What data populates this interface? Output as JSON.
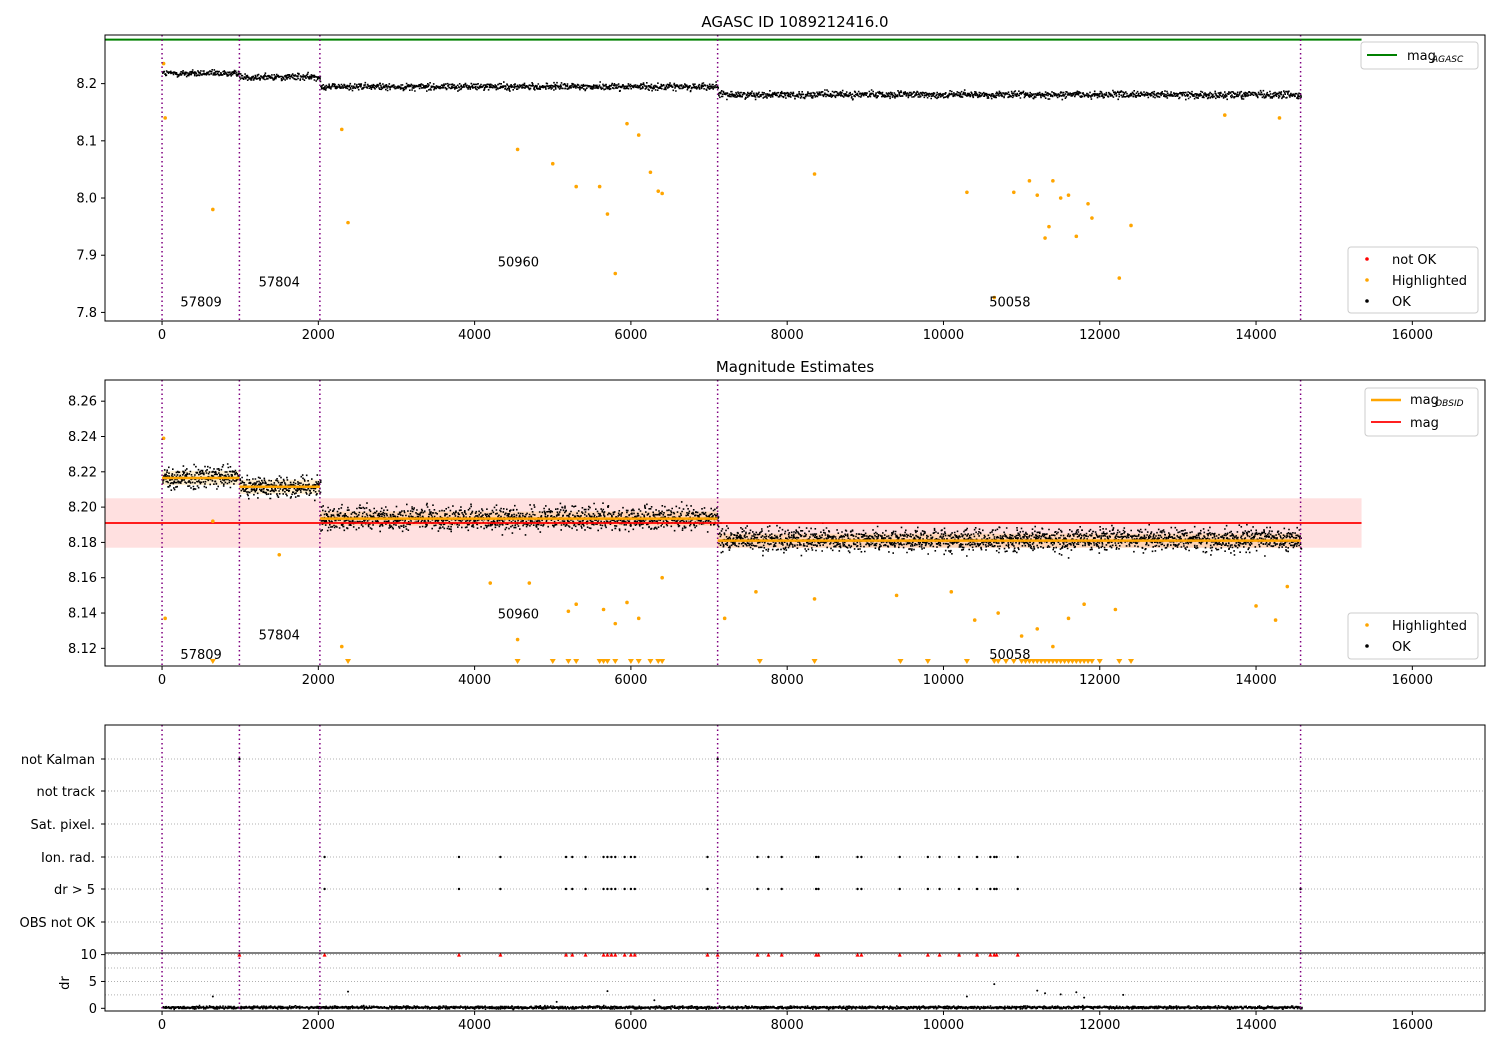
{
  "figure": {
    "title": "AGASC ID 1089212416.0"
  },
  "chart_data": [
    {
      "type": "scatter",
      "title": "",
      "xlabel": "",
      "ylabel": "",
      "xlim": [
        -730,
        16930
      ],
      "ylim": [
        7.785,
        8.285
      ],
      "xticks": [
        0,
        2000,
        4000,
        6000,
        8000,
        10000,
        12000,
        14000,
        16000
      ],
      "yticks": [
        7.8,
        7.9,
        8.0,
        8.1,
        8.2
      ],
      "ytick_labels": [
        "7.8",
        "7.9",
        "8.0",
        "8.1",
        "8.2"
      ],
      "obs_boundaries": [
        0,
        990,
        2020,
        7110,
        14570
      ],
      "obsid_labels": [
        {
          "text": "57809",
          "x": 500,
          "y": 7.81
        },
        {
          "text": "57804",
          "x": 1500,
          "y": 7.845
        },
        {
          "text": "50960",
          "x": 4560,
          "y": 7.88
        },
        {
          "text": "50058",
          "x": 10850,
          "y": 7.81
        }
      ],
      "reference_line": {
        "name": "mag_AGASC",
        "y": 8.277,
        "xrange": [
          -730,
          15350
        ],
        "color": "#008000"
      },
      "segments": [
        {
          "x0": 0,
          "x1": 990,
          "mean": 8.219,
          "spread": 0.006
        },
        {
          "x0": 990,
          "x1": 2020,
          "mean": 8.213,
          "spread": 0.006
        },
        {
          "x0": 2020,
          "x1": 7110,
          "mean": 8.196,
          "spread": 0.006
        },
        {
          "x0": 7110,
          "x1": 14570,
          "mean": 8.182,
          "spread": 0.006
        }
      ],
      "series": [
        {
          "name": "not OK",
          "color": "#ff0000",
          "values": []
        },
        {
          "name": "Highlighted",
          "color": "#ffa500",
          "points": [
            [
              20,
              8.235
            ],
            [
              40,
              8.14
            ],
            [
              650,
              7.98
            ],
            [
              2300,
              8.12
            ],
            [
              2380,
              7.957
            ],
            [
              4550,
              8.085
            ],
            [
              5000,
              8.06
            ],
            [
              5300,
              8.02
            ],
            [
              5600,
              8.02
            ],
            [
              5700,
              7.972
            ],
            [
              5800,
              7.868
            ],
            [
              5950,
              8.13
            ],
            [
              6100,
              8.11
            ],
            [
              6250,
              8.045
            ],
            [
              6350,
              8.012
            ],
            [
              6400,
              8.008
            ],
            [
              8350,
              8.042
            ],
            [
              10300,
              8.01
            ],
            [
              10650,
              7.826
            ],
            [
              10900,
              8.01
            ],
            [
              11100,
              8.03
            ],
            [
              11200,
              8.005
            ],
            [
              11300,
              7.93
            ],
            [
              11350,
              7.95
            ],
            [
              11400,
              8.03
            ],
            [
              11500,
              8.0
            ],
            [
              11600,
              8.005
            ],
            [
              11700,
              7.933
            ],
            [
              11850,
              7.99
            ],
            [
              11900,
              7.965
            ],
            [
              12250,
              7.86
            ],
            [
              12400,
              7.952
            ],
            [
              14300,
              8.14
            ],
            [
              13600,
              8.145
            ]
          ]
        },
        {
          "name": "OK",
          "color": "#000000",
          "values": []
        }
      ],
      "legend": {
        "location": "lower right",
        "entries": [
          "not OK",
          "Highlighted",
          "OK"
        ]
      },
      "legend_top": {
        "location": "upper right",
        "entries": [
          "mag_AGASC"
        ]
      }
    },
    {
      "type": "scatter",
      "title": "Magnitude Estimates",
      "xlabel": "",
      "ylabel": "",
      "xlim": [
        -730,
        16930
      ],
      "ylim": [
        8.11,
        8.272
      ],
      "xticks": [
        0,
        2000,
        4000,
        6000,
        8000,
        10000,
        12000,
        14000,
        16000
      ],
      "yticks": [
        8.12,
        8.14,
        8.16,
        8.18,
        8.2,
        8.22,
        8.24,
        8.26
      ],
      "ytick_labels": [
        "8.12",
        "8.14",
        "8.16",
        "8.18",
        "8.20",
        "8.22",
        "8.24",
        "8.26"
      ],
      "obs_boundaries": [
        0,
        990,
        2020,
        7110,
        14570
      ],
      "obsid_labels": [
        {
          "text": "57809",
          "x": 500,
          "y": 8.114
        },
        {
          "text": "57804",
          "x": 1500,
          "y": 8.125
        },
        {
          "text": "50960",
          "x": 4560,
          "y": 8.137
        },
        {
          "text": "50058",
          "x": 10850,
          "y": 8.114
        }
      ],
      "mag_mean": 8.191,
      "mag_band": [
        8.177,
        8.205
      ],
      "mag_line_xrange": [
        -730,
        15350
      ],
      "obsid_means": [
        {
          "x0": 0,
          "x1": 990,
          "y": 8.2165
        },
        {
          "x0": 990,
          "x1": 2020,
          "y": 8.2115
        },
        {
          "x0": 2020,
          "x1": 7110,
          "y": 8.1935
        },
        {
          "x0": 7110,
          "x1": 14570,
          "y": 8.181
        }
      ],
      "segments": [
        {
          "x0": 0,
          "x1": 990,
          "mean": 8.217,
          "spread": 0.006
        },
        {
          "x0": 990,
          "x1": 2020,
          "mean": 8.212,
          "spread": 0.006
        },
        {
          "x0": 2020,
          "x1": 7110,
          "mean": 8.194,
          "spread": 0.0065
        },
        {
          "x0": 7110,
          "x1": 14570,
          "mean": 8.182,
          "spread": 0.0065
        }
      ],
      "series": [
        {
          "name": "Highlighted",
          "color": "#ffa500",
          "points": [
            [
              20,
              8.239
            ],
            [
              40,
              8.137
            ],
            [
              650,
              8.192
            ],
            [
              1500,
              8.173
            ],
            [
              2300,
              8.121
            ],
            [
              4200,
              8.157
            ],
            [
              4550,
              8.125
            ],
            [
              4700,
              8.157
            ],
            [
              5200,
              8.141
            ],
            [
              5300,
              8.145
            ],
            [
              5650,
              8.142
            ],
            [
              5800,
              8.134
            ],
            [
              5950,
              8.146
            ],
            [
              6100,
              8.137
            ],
            [
              6400,
              8.16
            ],
            [
              7200,
              8.137
            ],
            [
              7600,
              8.152
            ],
            [
              8350,
              8.148
            ],
            [
              9400,
              8.15
            ],
            [
              10100,
              8.152
            ],
            [
              10400,
              8.136
            ],
            [
              10700,
              8.14
            ],
            [
              11000,
              8.127
            ],
            [
              11200,
              8.131
            ],
            [
              11400,
              8.121
            ],
            [
              11600,
              8.137
            ],
            [
              11800,
              8.145
            ],
            [
              12200,
              8.142
            ],
            [
              14250,
              8.136
            ],
            [
              14000,
              8.144
            ],
            [
              14400,
              8.155
            ]
          ]
        },
        {
          "name": "Highlighted (clipped)",
          "color": "#ffa500",
          "xs": [
            650,
            2380,
            4550,
            5000,
            5200,
            5300,
            5600,
            5650,
            5700,
            5800,
            6000,
            6100,
            6250,
            6350,
            6400,
            7650,
            8350,
            9450,
            9800,
            10300,
            10650,
            10700,
            10800,
            10900,
            11000,
            11050,
            11100,
            11150,
            11200,
            11250,
            11300,
            11350,
            11400,
            11450,
            11500,
            11550,
            11600,
            11650,
            11700,
            11750,
            11800,
            11850,
            11900,
            12000,
            12250,
            12400
          ]
        },
        {
          "name": "OK",
          "color": "#000000",
          "values": []
        }
      ],
      "legend": {
        "location": "lower right",
        "entries": [
          "Highlighted",
          "OK"
        ]
      },
      "legend_top": {
        "location": "upper right",
        "entries": [
          "mag_OBSID",
          "mag"
        ]
      }
    },
    {
      "type": "scatter",
      "title": "",
      "xlabel": "",
      "ylabel": "",
      "xlim": [
        -730,
        16930
      ],
      "flag_rows": [
        "not Kalman",
        "not track",
        "Sat. pixel.",
        "Ion. rad.",
        "dr > 5",
        "OBS not OK"
      ],
      "obs_boundaries": [
        0,
        990,
        2020,
        7110,
        14570
      ],
      "flag_points": {
        "Ion. rad.": [
          2080,
          3800,
          4330,
          5170,
          5250,
          5420,
          5650,
          5700,
          5750,
          5800,
          5920,
          6000,
          6050,
          6980,
          7620,
          7760,
          7930,
          8370,
          8400,
          8900,
          8950,
          9440,
          9800,
          9950,
          10200,
          10430,
          10600,
          10650,
          10680,
          10950
        ],
        "dr > 5": [
          2080,
          3800,
          4330,
          5170,
          5250,
          5420,
          5650,
          5700,
          5750,
          5800,
          5920,
          6000,
          6050,
          6980,
          7620,
          7760,
          7930,
          8370,
          8400,
          8900,
          8950,
          9440,
          9800,
          9950,
          10200,
          10430,
          10600,
          10650,
          10680,
          10950,
          14570
        ],
        "not Kalman": [
          990,
          7110
        ]
      }
    },
    {
      "type": "scatter",
      "title": "",
      "xlabel": "",
      "ylabel": "dr",
      "xlim": [
        -730,
        16930
      ],
      "ylim": [
        -0.5,
        10.3
      ],
      "xticks": [
        0,
        2000,
        4000,
        6000,
        8000,
        10000,
        12000,
        14000,
        16000
      ],
      "yticks": [
        0,
        5,
        10
      ],
      "ytick_labels": [
        "0",
        "5",
        "10"
      ],
      "obs_boundaries": [
        0,
        990,
        2020,
        7110,
        14570
      ],
      "clipped_points": [
        990,
        2080,
        3800,
        4330,
        5170,
        5250,
        5420,
        5650,
        5700,
        5750,
        5800,
        5920,
        6000,
        6050,
        6980,
        7110,
        7620,
        7760,
        7930,
        8370,
        8400,
        8900,
        8950,
        9440,
        9800,
        9950,
        10200,
        10430,
        10600,
        10650,
        10680,
        10950
      ],
      "outliers": [
        [
          650,
          2.2
        ],
        [
          2380,
          3.1
        ],
        [
          5050,
          1.2
        ],
        [
          5700,
          3.2
        ],
        [
          6300,
          1.5
        ],
        [
          10300,
          2.2
        ],
        [
          10650,
          4.5
        ],
        [
          11200,
          3.3
        ],
        [
          11300,
          2.8
        ],
        [
          11500,
          2.6
        ],
        [
          11700,
          3.0
        ],
        [
          11800,
          2.0
        ],
        [
          12300,
          2.5
        ]
      ]
    }
  ]
}
